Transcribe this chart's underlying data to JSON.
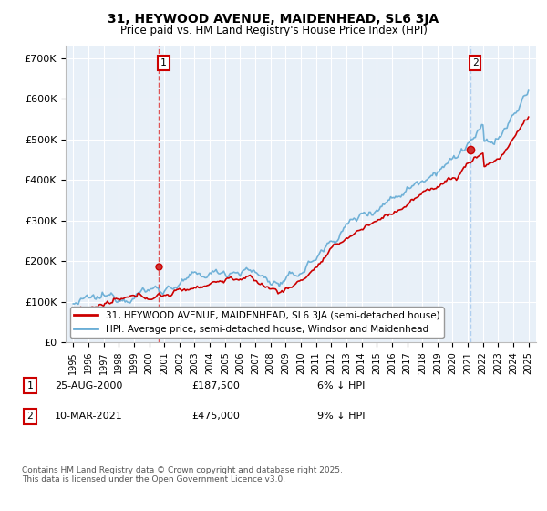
{
  "title": "31, HEYWOOD AVENUE, MAIDENHEAD, SL6 3JA",
  "subtitle": "Price paid vs. HM Land Registry's House Price Index (HPI)",
  "ylim": [
    0,
    730000
  ],
  "xlim": [
    1994.5,
    2025.5
  ],
  "yticks": [
    0,
    100000,
    200000,
    300000,
    400000,
    500000,
    600000,
    700000
  ],
  "ytick_labels": [
    "£0",
    "£100K",
    "£200K",
    "£300K",
    "£400K",
    "£500K",
    "£600K",
    "£700K"
  ],
  "sale1_date": 2000.65,
  "sale1_price": 187500,
  "sale1_label": "1",
  "sale2_date": 2021.19,
  "sale2_price": 475000,
  "sale2_label": "2",
  "hpi_color": "#6aaed6",
  "price_color": "#cc0000",
  "vline1_color": "#dd4444",
  "vline2_color": "#aaccee",
  "plot_bg_color": "#e8f0f8",
  "legend1": "31, HEYWOOD AVENUE, MAIDENHEAD, SL6 3JA (semi-detached house)",
  "legend2": "HPI: Average price, semi-detached house, Windsor and Maidenhead",
  "note1_label": "1",
  "note1_date": "25-AUG-2000",
  "note1_price": "£187,500",
  "note1_pct": "6% ↓ HPI",
  "note2_label": "2",
  "note2_date": "10-MAR-2021",
  "note2_price": "£475,000",
  "note2_pct": "9% ↓ HPI",
  "copyright": "Contains HM Land Registry data © Crown copyright and database right 2025.\nThis data is licensed under the Open Government Licence v3.0."
}
